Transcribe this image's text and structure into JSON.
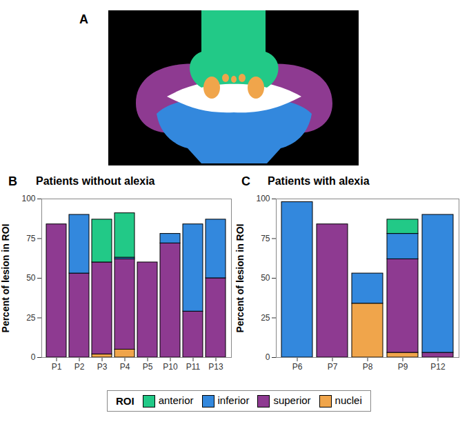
{
  "figure": {
    "panel_label": "A",
    "legend_title": "ROI",
    "legend": "bottom"
  },
  "chart_data": [
    {
      "type": "bar",
      "panel_label": "B",
      "title": "Patients without alexia",
      "y_label": "Percent of lesion in ROI",
      "categories": [
        "P1",
        "P2",
        "P3",
        "P4",
        "P5",
        "P10",
        "P11",
        "P13"
      ],
      "series": [
        {
          "name": "anterior",
          "color": "#22c987",
          "values": [
            0,
            0,
            27,
            28,
            0,
            0,
            0,
            0
          ]
        },
        {
          "name": "inferior",
          "color": "#3388dd",
          "values": [
            0,
            37,
            0,
            1,
            0,
            6,
            55,
            37
          ]
        },
        {
          "name": "superior",
          "color": "#8e3a91",
          "values": [
            84,
            53,
            58,
            57,
            60,
            72,
            29,
            50
          ]
        },
        {
          "name": "nuclei",
          "color": "#f0a54b",
          "values": [
            0,
            0,
            2,
            5,
            0,
            0,
            0,
            0
          ]
        }
      ],
      "ylim": [
        0,
        100
      ],
      "yticks": [
        0,
        25,
        50,
        75,
        100
      ],
      "stacked": true,
      "grid": false
    },
    {
      "type": "bar",
      "panel_label": "C",
      "title": "Patients with alexia",
      "y_label": "Percent of lesion in ROI",
      "categories": [
        "P6",
        "P7",
        "P8",
        "P9",
        "P12"
      ],
      "series": [
        {
          "name": "anterior",
          "color": "#22c987",
          "values": [
            0,
            0,
            0,
            9,
            0
          ]
        },
        {
          "name": "inferior",
          "color": "#3388dd",
          "values": [
            98,
            0,
            19,
            16,
            87
          ]
        },
        {
          "name": "superior",
          "color": "#8e3a91",
          "values": [
            0,
            84,
            0,
            59,
            3
          ]
        },
        {
          "name": "nuclei",
          "color": "#f0a54b",
          "values": [
            0,
            0,
            34,
            3,
            0
          ]
        }
      ],
      "ylim": [
        0,
        100
      ],
      "yticks": [
        0,
        25,
        50,
        75,
        100
      ],
      "stacked": true,
      "grid": false
    }
  ]
}
